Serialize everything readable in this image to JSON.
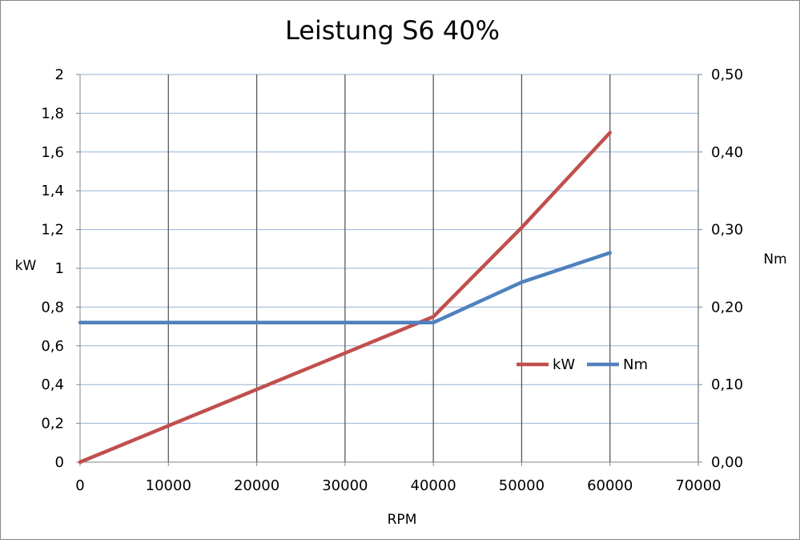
{
  "chart_data": {
    "type": "line",
    "title": "Leistung S6 40%",
    "xlabel": "RPM",
    "ylabel": "kW",
    "y2label": "Nm",
    "xlim": [
      0,
      70000
    ],
    "ylim": [
      0,
      2
    ],
    "y2lim": [
      0,
      0.5
    ],
    "x_ticks": [
      "0",
      "10000",
      "20000",
      "30000",
      "40000",
      "50000",
      "60000",
      "70000"
    ],
    "y_ticks": [
      "0",
      "0,2",
      "0,4",
      "0,6",
      "0,8",
      "1",
      "1,2",
      "1,4",
      "1,6",
      "1,8",
      "2"
    ],
    "y2_ticks": [
      "0,00",
      "0,10",
      "0,20",
      "0,30",
      "0,40",
      "0,50"
    ],
    "x_tick_values": [
      0,
      10000,
      20000,
      30000,
      40000,
      50000,
      60000,
      70000
    ],
    "y_tick_values": [
      0,
      0.2,
      0.4,
      0.6,
      0.8,
      1,
      1.2,
      1.4,
      1.6,
      1.8,
      2
    ],
    "y2_tick_values": [
      0,
      0.1,
      0.2,
      0.3,
      0.4,
      0.5
    ],
    "grid": true,
    "legend_position": "right",
    "series": [
      {
        "name": "kW",
        "axis": "left",
        "color": "#C0504D",
        "x": [
          0,
          40000,
          50000,
          60000
        ],
        "y": [
          0,
          0.75,
          1.21,
          1.7
        ]
      },
      {
        "name": "Nm",
        "axis": "right",
        "color": "#4F81BD",
        "x": [
          0,
          40000,
          50000,
          60000
        ],
        "y": [
          0.18,
          0.18,
          0.232,
          0.27
        ]
      }
    ]
  }
}
